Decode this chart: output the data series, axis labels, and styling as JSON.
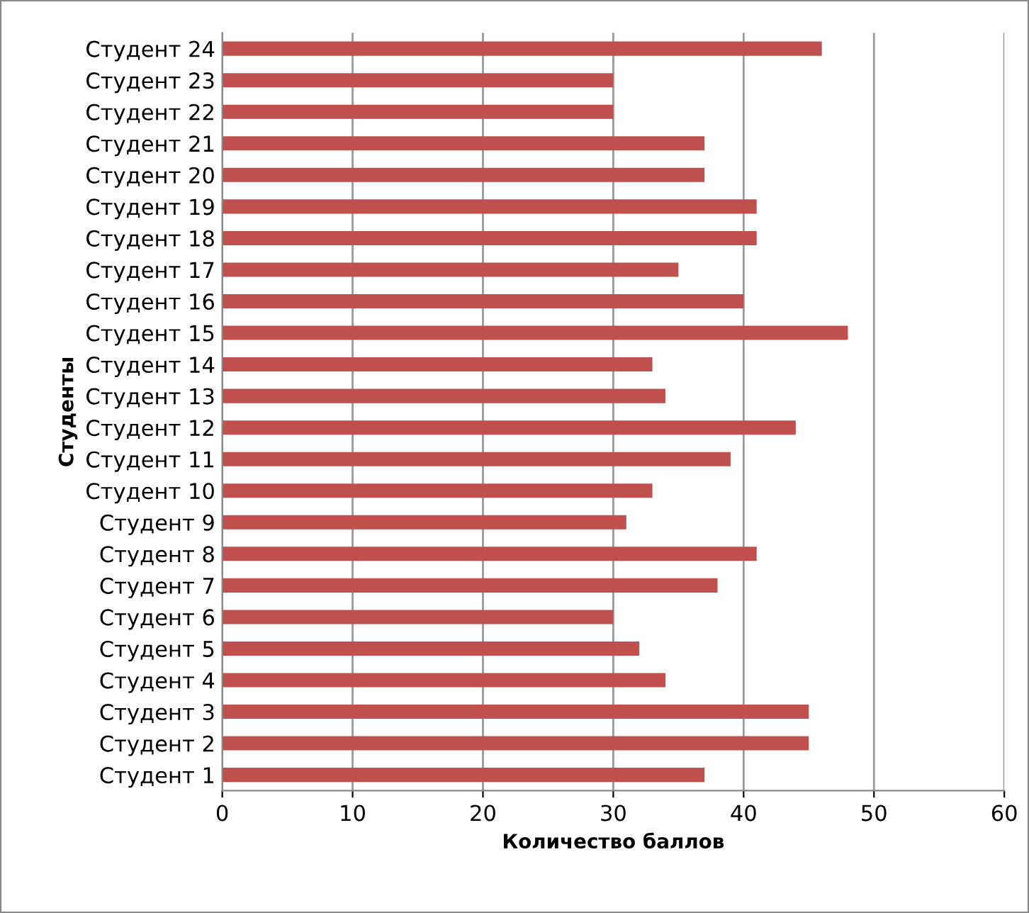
{
  "chart_data": {
    "type": "bar",
    "orientation": "horizontal",
    "xlabel": "Количество баллов",
    "ylabel": "Студенты",
    "categories": [
      "Студент 24",
      "Студент 23",
      "Студент 22",
      "Студент 21",
      "Студент 20",
      "Студент 19",
      "Студент 18",
      "Студент 17",
      "Студент 16",
      "Студент 15",
      "Студент 14",
      "Студент 13",
      "Студент 12",
      "Студент 11",
      "Студент 10",
      "Студент 9",
      "Студент 8",
      "Студент 7",
      "Студент 6",
      "Студент 5",
      "Студент 4",
      "Студент 3",
      "Студент 2",
      "Студент 1"
    ],
    "values": [
      46,
      30,
      30,
      37,
      37,
      41,
      41,
      35,
      40,
      48,
      33,
      34,
      44,
      39,
      33,
      31,
      41,
      38,
      30,
      32,
      34,
      45,
      45,
      37
    ],
    "color": "#c0504d",
    "xlim": [
      0,
      60
    ],
    "xticks": [
      0,
      10,
      20,
      30,
      40,
      50,
      60
    ],
    "grid": "x"
  }
}
